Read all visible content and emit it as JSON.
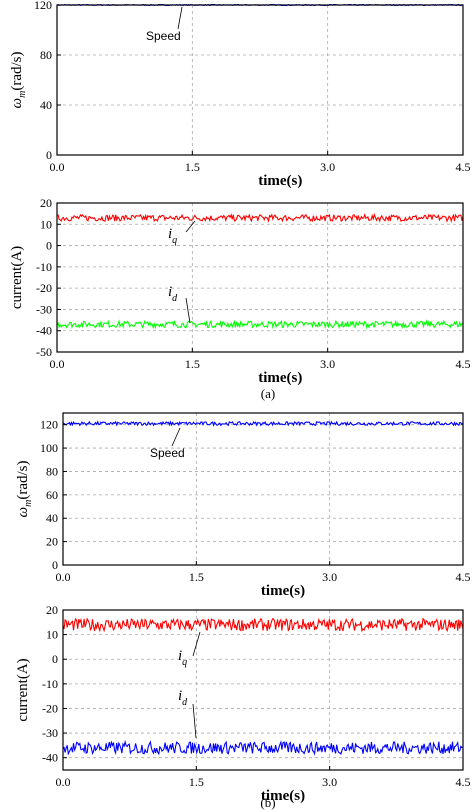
{
  "chart_data": [
    {
      "id": "a_speed",
      "type": "line",
      "ylabel": "ω_m(rad/s)",
      "xlabel": "time(s)",
      "xlim": [
        0,
        4.5
      ],
      "ylim": [
        0,
        120
      ],
      "xticks": [
        "0.0",
        "1.5",
        "3.0",
        "4.5"
      ],
      "yticks": [
        "0",
        "40",
        "80",
        "120"
      ],
      "grid": true,
      "series": [
        {
          "name": "Speed",
          "color": "#0000ff",
          "mean": 120,
          "noise": 0.4,
          "x": [
            0,
            4.5
          ],
          "y": [
            120,
            120
          ]
        }
      ],
      "annotations": [
        {
          "text": "Speed",
          "x": 1.35,
          "y": 120
        }
      ]
    },
    {
      "id": "a_current",
      "type": "line",
      "ylabel": "current(A)",
      "xlabel": "time(s)",
      "xlim": [
        0,
        4.5
      ],
      "ylim": [
        -50,
        20
      ],
      "xticks": [
        "0.0",
        "1.5",
        "3.0",
        "4.5"
      ],
      "yticks": [
        "20",
        "10",
        "0",
        "-10",
        "-20",
        "-30",
        "-40",
        "-50"
      ],
      "grid": true,
      "series": [
        {
          "name": "i_q",
          "color": "#ff0000",
          "mean": 13,
          "noise": 1.5,
          "x": [
            0,
            4.5
          ],
          "y": [
            13,
            13
          ]
        },
        {
          "name": "i_d",
          "color": "#00ff00",
          "mean": -37,
          "noise": 1.5,
          "x": [
            0,
            4.5
          ],
          "y": [
            -37,
            -37
          ]
        }
      ],
      "annotations": [
        {
          "text": "i",
          "sub": "q",
          "x": 1.5,
          "y": 13
        },
        {
          "text": "i",
          "sub": "d",
          "x": 1.5,
          "y": -37
        }
      ]
    },
    {
      "id": "b_speed",
      "type": "line",
      "ylabel": "ω_m(rad/s)",
      "xlabel": "time(s)",
      "xlim": [
        0,
        4.5
      ],
      "ylim": [
        0,
        130
      ],
      "xticks": [
        "0.0",
        "1.5",
        "3.0",
        "4.5"
      ],
      "yticks": [
        "0",
        "20",
        "40",
        "60",
        "80",
        "100",
        "120"
      ],
      "grid": true,
      "series": [
        {
          "name": "Speed",
          "color": "#0000ff",
          "mean": 121,
          "noise": 1.5,
          "x": [
            0,
            4.5
          ],
          "y": [
            121,
            121
          ]
        }
      ],
      "annotations": [
        {
          "text": "Speed",
          "x": 1.3,
          "y": 121
        }
      ]
    },
    {
      "id": "b_current",
      "type": "line",
      "ylabel": "current(A)",
      "xlabel": "time(s)",
      "xlim": [
        0,
        4.5
      ],
      "ylim": [
        -45,
        20
      ],
      "xticks": [
        "0.0",
        "1.5",
        "3.0",
        "4.5"
      ],
      "yticks": [
        "20",
        "10",
        "0",
        "-10",
        "-20",
        "-30",
        "-40"
      ],
      "grid": true,
      "series": [
        {
          "name": "i_q",
          "color": "#ff0000",
          "mean": 14,
          "noise": 2.5,
          "x": [
            0,
            4.5
          ],
          "y": [
            14,
            14
          ]
        },
        {
          "name": "i_d",
          "color": "#0000ff",
          "mean": -36,
          "noise": 2.5,
          "x": [
            0,
            4.5
          ],
          "y": [
            -36,
            -36
          ]
        }
      ],
      "annotations": [
        {
          "text": "i",
          "sub": "q",
          "x": 1.5,
          "y": 14
        },
        {
          "text": "i",
          "sub": "d",
          "x": 1.5,
          "y": -36
        }
      ]
    }
  ],
  "captions": {
    "a": "(a)",
    "b": "(b)"
  },
  "labels": {
    "speed": "Speed",
    "iq": "i",
    "iq_sub": "q",
    "id": "i",
    "id_sub": "d",
    "omega": "ω",
    "omega_sub": "m",
    "omega_unit": "(rad/s)",
    "current": "current(A)",
    "time": "time(s)"
  }
}
